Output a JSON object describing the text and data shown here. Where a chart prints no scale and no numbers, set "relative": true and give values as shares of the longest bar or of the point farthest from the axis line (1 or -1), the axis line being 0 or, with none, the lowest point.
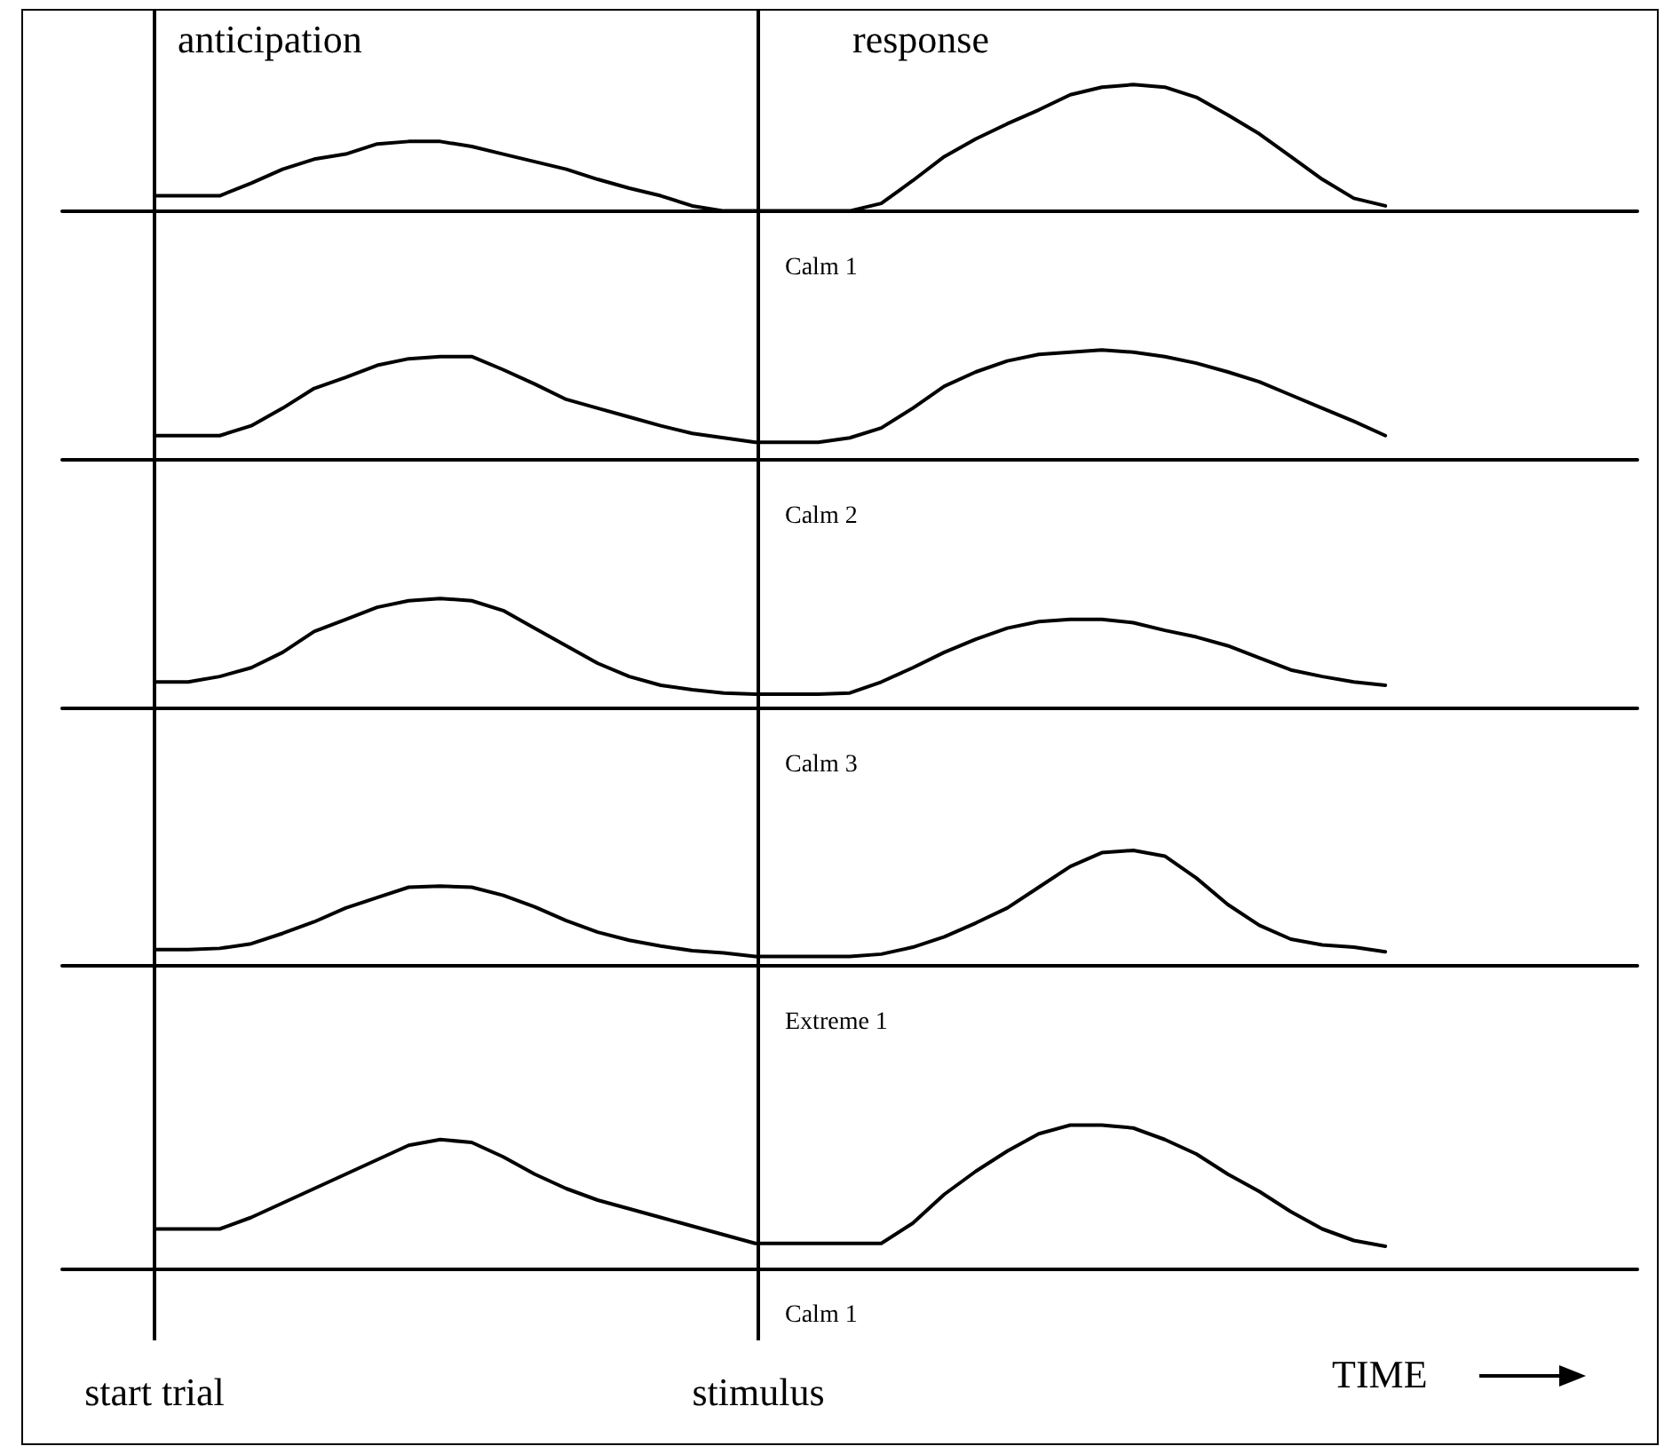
{
  "chart_data": [
    {
      "type": "line",
      "title": "Calm 1",
      "relative": true,
      "color": "#000000",
      "annotations": [
        "anticipation",
        "response"
      ],
      "categories": [
        null,
        null,
        null,
        null,
        null,
        null,
        null,
        null,
        null,
        null,
        null,
        null,
        null,
        null,
        null,
        null,
        null,
        null,
        null,
        null,
        null,
        null,
        null,
        null,
        null,
        null,
        null,
        null,
        null,
        null,
        null,
        null,
        null,
        null,
        null,
        null,
        null,
        null,
        null,
        null,
        null,
        null,
        null,
        null,
        null,
        null,
        null,
        null,
        null,
        null,
        null
      ],
      "values": [
        null,
        null,
        null,
        0.12,
        0.12,
        0.12,
        0.22,
        0.33,
        0.41,
        0.45,
        0.53,
        0.55,
        0.55,
        0.51,
        0.45,
        0.39,
        0.33,
        0.25,
        0.18,
        0.12,
        0.04,
        0,
        0,
        0,
        0,
        0,
        0.06,
        0.24,
        0.43,
        0.57,
        0.69,
        0.8,
        0.92,
        0.98,
        1,
        0.98,
        0.9,
        0.76,
        0.61,
        0.43,
        0.25,
        0.1,
        0.04,
        null,
        null,
        null,
        null,
        null,
        null,
        null,
        null
      ]
    },
    {
      "type": "line",
      "title": "Calm 2",
      "relative": true,
      "color": "#000000",
      "categories": [
        null,
        null,
        null,
        null,
        null,
        null,
        null,
        null,
        null,
        null,
        null,
        null,
        null,
        null,
        null,
        null,
        null,
        null,
        null,
        null,
        null,
        null,
        null,
        null,
        null,
        null,
        null,
        null,
        null,
        null,
        null,
        null,
        null,
        null,
        null,
        null,
        null,
        null,
        null,
        null,
        null,
        null,
        null,
        null,
        null,
        null,
        null,
        null,
        null,
        null,
        null
      ],
      "values": [
        null,
        null,
        null,
        0.22,
        0.22,
        0.22,
        0.31,
        0.47,
        0.65,
        0.75,
        0.86,
        0.92,
        0.94,
        0.94,
        0.82,
        0.69,
        0.55,
        0.47,
        0.39,
        0.31,
        0.24,
        0.2,
        0.16,
        0.16,
        0.16,
        0.2,
        0.29,
        0.47,
        0.67,
        0.8,
        0.9,
        0.96,
        0.98,
        1,
        0.98,
        0.94,
        0.88,
        0.8,
        0.71,
        0.59,
        0.47,
        0.35,
        0.22,
        null,
        null,
        null,
        null,
        null,
        null,
        null,
        null
      ]
    },
    {
      "type": "line",
      "title": "Calm 3",
      "relative": true,
      "color": "#000000",
      "categories": [
        null,
        null,
        null,
        null,
        null,
        null,
        null,
        null,
        null,
        null,
        null,
        null,
        null,
        null,
        null,
        null,
        null,
        null,
        null,
        null,
        null,
        null,
        null,
        null,
        null,
        null,
        null,
        null,
        null,
        null,
        null,
        null,
        null,
        null,
        null,
        null,
        null,
        null,
        null,
        null,
        null,
        null,
        null,
        null,
        null,
        null,
        null,
        null,
        null,
        null,
        null
      ],
      "values": [
        null,
        null,
        null,
        0.24,
        0.24,
        0.29,
        0.37,
        0.51,
        0.7,
        0.81,
        0.92,
        0.98,
        1,
        0.98,
        0.89,
        0.73,
        0.57,
        0.41,
        0.29,
        0.21,
        0.17,
        0.14,
        0.13,
        0.13,
        0.13,
        0.14,
        0.24,
        0.37,
        0.51,
        0.63,
        0.73,
        0.79,
        0.81,
        0.81,
        0.78,
        0.71,
        0.65,
        0.57,
        0.46,
        0.35,
        0.29,
        0.24,
        0.21,
        null,
        null,
        null,
        null,
        null,
        null,
        null,
        null
      ]
    },
    {
      "type": "line",
      "title": "Extreme 1",
      "relative": true,
      "color": "#000000",
      "categories": [
        null,
        null,
        null,
        null,
        null,
        null,
        null,
        null,
        null,
        null,
        null,
        null,
        null,
        null,
        null,
        null,
        null,
        null,
        null,
        null,
        null,
        null,
        null,
        null,
        null,
        null,
        null,
        null,
        null,
        null,
        null,
        null,
        null,
        null,
        null,
        null,
        null,
        null,
        null,
        null,
        null,
        null,
        null,
        null,
        null,
        null,
        null,
        null,
        null,
        null,
        null
      ],
      "values": [
        null,
        null,
        null,
        0.14,
        0.14,
        0.15,
        0.19,
        0.28,
        0.38,
        0.5,
        0.59,
        0.68,
        0.69,
        0.68,
        0.61,
        0.51,
        0.39,
        0.29,
        0.22,
        0.17,
        0.13,
        0.11,
        0.08,
        0.08,
        0.08,
        0.08,
        0.1,
        0.16,
        0.25,
        0.37,
        0.5,
        0.68,
        0.86,
        0.98,
        1,
        0.95,
        0.76,
        0.53,
        0.35,
        0.23,
        0.18,
        0.16,
        0.12,
        null,
        null,
        null,
        null,
        null,
        null,
        null,
        null
      ]
    },
    {
      "type": "line",
      "title": "Calm 1",
      "relative": true,
      "color": "#000000",
      "xlabel": "TIME",
      "annotations": [
        "start trial",
        "stimulus"
      ],
      "categories": [
        null,
        null,
        null,
        null,
        null,
        null,
        null,
        null,
        null,
        null,
        null,
        null,
        null,
        null,
        null,
        null,
        null,
        null,
        null,
        null,
        null,
        null,
        null,
        null,
        null,
        null,
        null,
        null,
        null,
        null,
        null,
        null,
        null,
        null,
        null,
        null,
        null,
        null,
        null,
        null,
        null,
        null,
        null,
        null,
        null,
        null,
        null,
        null,
        null,
        null,
        null
      ],
      "values": [
        null,
        null,
        null,
        0.28,
        0.28,
        0.28,
        0.36,
        0.46,
        0.56,
        0.66,
        0.76,
        0.86,
        0.9,
        0.88,
        0.78,
        0.66,
        0.56,
        0.48,
        0.42,
        0.36,
        0.3,
        0.24,
        0.18,
        0.18,
        0.18,
        0.18,
        0.18,
        0.32,
        0.52,
        0.68,
        0.82,
        0.94,
        1,
        1,
        0.98,
        0.9,
        0.8,
        0.66,
        0.54,
        0.4,
        0.28,
        0.2,
        0.16,
        null,
        null,
        null,
        null,
        null,
        null,
        null,
        null
      ]
    }
  ]
}
